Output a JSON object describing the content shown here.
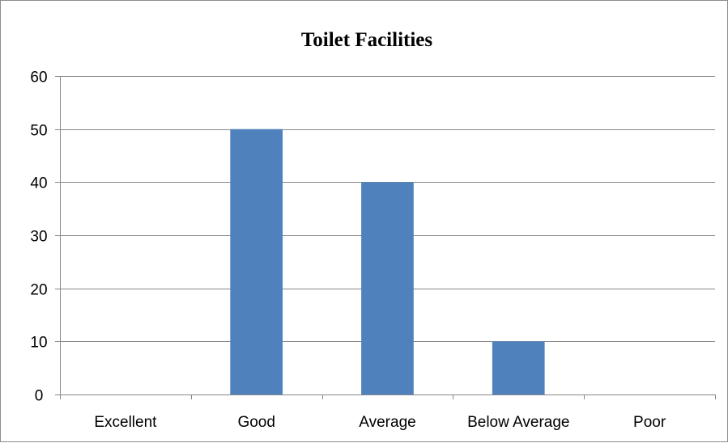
{
  "chart_data": {
    "type": "bar",
    "title": "Toilet Facilities",
    "xlabel": "",
    "ylabel": "",
    "categories": [
      "Excellent",
      "Good",
      "Average",
      "Below Average",
      "Poor"
    ],
    "values": [
      0,
      50,
      40,
      10,
      0
    ],
    "ylim": [
      0,
      60
    ],
    "yticks": [
      0,
      10,
      20,
      30,
      40,
      50,
      60
    ],
    "grid": true,
    "legend": "none",
    "bar_color": "#4f81bd",
    "gridline_color": "#868686"
  }
}
